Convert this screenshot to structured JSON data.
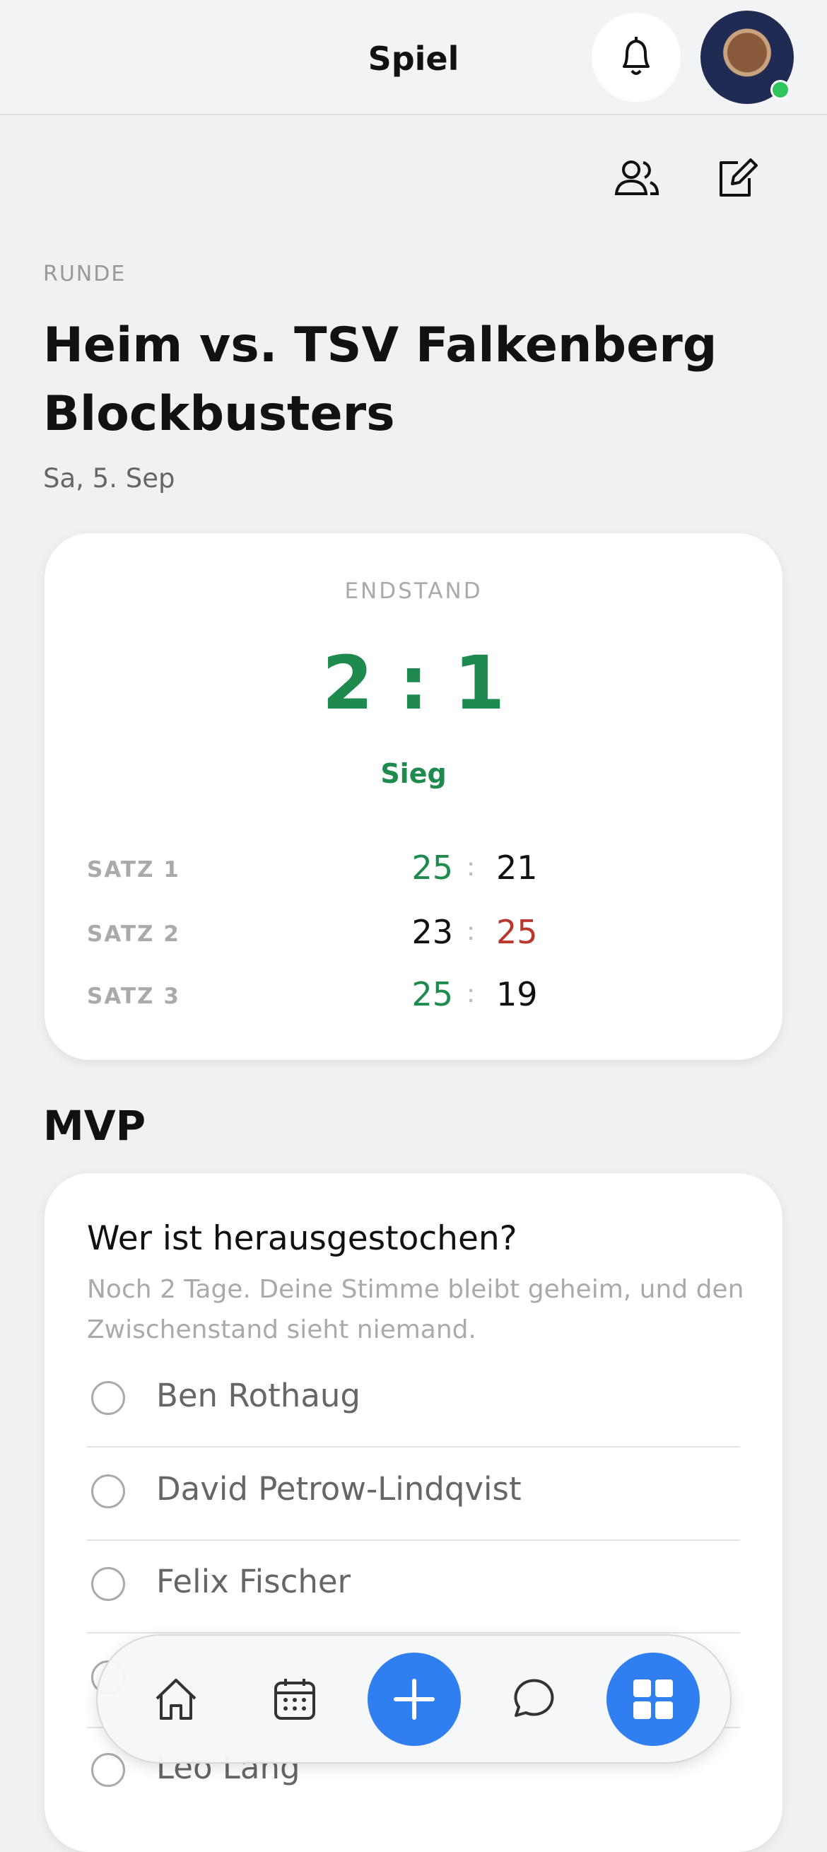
{
  "header": {
    "title": "Spiel"
  },
  "match": {
    "label": "RUNDE",
    "title": "Heim vs. TSV Falkenberg Blockbusters",
    "date": "Sa, 5. Sep"
  },
  "score": {
    "label": "ENDSTAND",
    "home": "2",
    "separator": ":",
    "away": "1",
    "result": "Sieg",
    "sets": [
      {
        "label": "SATZ 1",
        "home": "25",
        "away": "21"
      },
      {
        "label": "SATZ 2",
        "home": "23",
        "away": "25"
      },
      {
        "label": "SATZ 3",
        "home": "25",
        "away": "19"
      }
    ]
  },
  "mvp": {
    "heading": "MVP",
    "question": "Wer ist herausgestochen?",
    "note": "Noch 2 Tage. Deine Stimme bleibt geheim, und den Zwischenstand sieht niemand.",
    "options": [
      "Ben Rothaug",
      "David Petrow-Lindqvist",
      "Felix Fischer",
      "Leo Lang"
    ]
  }
}
